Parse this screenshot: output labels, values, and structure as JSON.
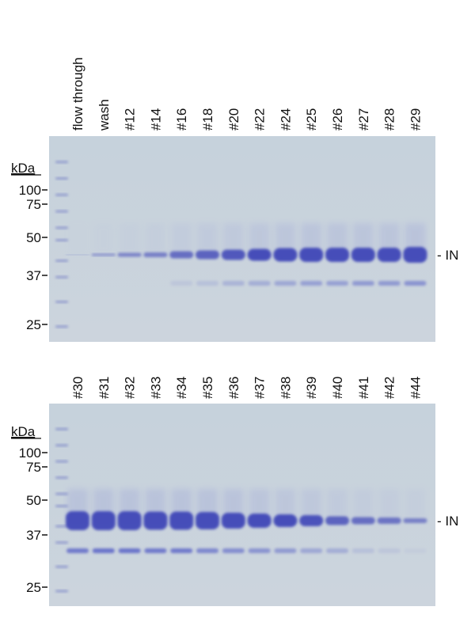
{
  "panels": [
    {
      "lanes": [
        "flow through",
        "wash",
        "#12",
        "#14",
        "#16",
        "#18",
        "#20",
        "#22",
        "#24",
        "#25",
        "#26",
        "#27",
        "#28",
        "#29"
      ],
      "unit": "kDa",
      "markers": [
        "100",
        "75",
        "50",
        "37",
        "25"
      ],
      "band_label": "- IN"
    },
    {
      "lanes": [
        "#30",
        "#31",
        "#32",
        "#33",
        "#34",
        "#35",
        "#36",
        "#37",
        "#38",
        "#39",
        "#40",
        "#41",
        "#42",
        "#44"
      ],
      "unit": "kDa",
      "markers": [
        "100",
        "75",
        "50",
        "37",
        "25"
      ],
      "band_label": "- IN"
    }
  ]
}
